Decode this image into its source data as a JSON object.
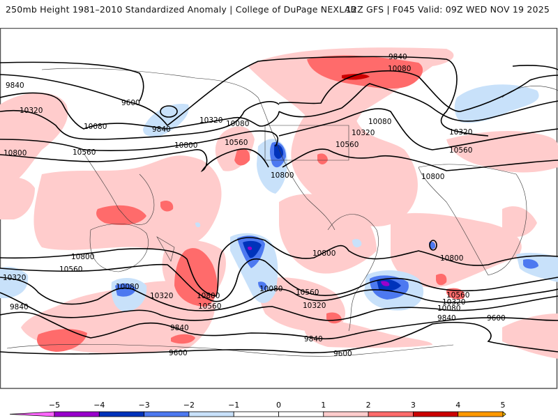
{
  "header": {
    "left_title": "250mb Height 1981–2010 Standardized Anomaly | College of DuPage NEXLAB",
    "right_title": "12Z GFS | F045 Valid: 09Z WED NOV 19 2025"
  },
  "map": {
    "variable": "250mb geopotential height (m) with standardized anomaly shading",
    "contour_labels": [
      {
        "id": "c1",
        "text": "9840"
      },
      {
        "id": "c2",
        "text": "9600"
      },
      {
        "id": "c3",
        "text": "10320"
      },
      {
        "id": "c4",
        "text": "10080"
      },
      {
        "id": "c5",
        "text": "9840"
      },
      {
        "id": "c6",
        "text": "10320"
      },
      {
        "id": "c7",
        "text": "10080"
      },
      {
        "id": "c8",
        "text": "10560"
      },
      {
        "id": "c9",
        "text": "10800"
      },
      {
        "id": "c10",
        "text": "10800"
      },
      {
        "id": "c11",
        "text": "10560"
      },
      {
        "id": "c12",
        "text": "10800"
      },
      {
        "id": "c13",
        "text": "9840"
      },
      {
        "id": "c14",
        "text": "10080"
      },
      {
        "id": "c15",
        "text": "10080"
      },
      {
        "id": "c16",
        "text": "10320"
      },
      {
        "id": "c17",
        "text": "10560"
      },
      {
        "id": "c18",
        "text": "10320"
      },
      {
        "id": "c19",
        "text": "10560"
      },
      {
        "id": "c20",
        "text": "10800"
      },
      {
        "id": "c21",
        "text": "10800"
      },
      {
        "id": "c22",
        "text": "10560"
      },
      {
        "id": "c23",
        "text": "10320"
      },
      {
        "id": "c24",
        "text": "10080"
      },
      {
        "id": "c25",
        "text": "9840"
      },
      {
        "id": "c26",
        "text": "10080"
      },
      {
        "id": "c27",
        "text": "10320"
      },
      {
        "id": "c28",
        "text": "10800"
      },
      {
        "id": "c29",
        "text": "10560"
      },
      {
        "id": "c30",
        "text": "10080"
      },
      {
        "id": "c31",
        "text": "10560"
      },
      {
        "id": "c32",
        "text": "10320"
      },
      {
        "id": "c33",
        "text": "9840"
      },
      {
        "id": "c34",
        "text": "9840"
      },
      {
        "id": "c35",
        "text": "9600"
      },
      {
        "id": "c36",
        "text": "10800"
      },
      {
        "id": "c37",
        "text": "10800"
      },
      {
        "id": "c38",
        "text": "10560"
      },
      {
        "id": "c39",
        "text": "10320"
      },
      {
        "id": "c40",
        "text": "10080"
      },
      {
        "id": "c41",
        "text": "9840"
      },
      {
        "id": "c42",
        "text": "9600"
      },
      {
        "id": "c43",
        "text": "9600"
      },
      {
        "id": "c44",
        "text": "9840"
      }
    ]
  },
  "colorbar": {
    "ticks": [
      "−5",
      "−4",
      "−3",
      "−2",
      "−1",
      "0",
      "1",
      "2",
      "3",
      "4",
      "5"
    ],
    "tick_values": [
      -5,
      -4,
      -3,
      -2,
      -1,
      0,
      1,
      2,
      3,
      4,
      5
    ],
    "bins": [
      {
        "range": "< -5",
        "color": "#ff66ff"
      },
      {
        "range": "-5 to -4",
        "color": "#9900cc"
      },
      {
        "range": "-4 to -3",
        "color": "#0033bb"
      },
      {
        "range": "-3 to -2",
        "color": "#4d79f0"
      },
      {
        "range": "-2 to -1",
        "color": "#c8e1fa"
      },
      {
        "range": "-1 to 0",
        "color": "#ffffff"
      },
      {
        "range": "0 to 1",
        "color": "#ffffff"
      },
      {
        "range": "1 to 2",
        "color": "#ffcccc"
      },
      {
        "range": "2 to 3",
        "color": "#ff6b6b"
      },
      {
        "range": "3 to 4",
        "color": "#cc0000"
      },
      {
        "range": "4 to 5",
        "color": "#ff9900"
      },
      {
        "range": "> 5",
        "color": "#ffcc00"
      }
    ]
  }
}
